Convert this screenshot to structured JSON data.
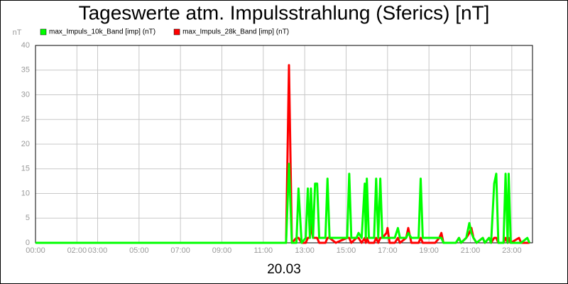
{
  "chart_data": {
    "type": "line",
    "title": "Tageswerte atm. Impulsstrahlung (Sferics) [nT]",
    "y_label": "nT",
    "x_label": "20.03",
    "x": [
      0,
      12.1,
      12.24,
      12.38,
      12.6,
      12.7,
      12.85,
      13.05,
      13.15,
      13.25,
      13.3,
      13.4,
      13.5,
      13.6,
      13.7,
      13.85,
      14.0,
      14.1,
      14.2,
      14.5,
      15.05,
      15.15,
      15.25,
      15.5,
      15.6,
      15.75,
      15.9,
      15.95,
      16.0,
      16.1,
      16.35,
      16.45,
      16.55,
      16.65,
      16.75,
      16.95,
      17.0,
      17.1,
      17.35,
      17.5,
      17.6,
      17.9,
      18.0,
      18.15,
      18.5,
      18.6,
      18.7,
      19.3,
      19.5,
      19.6,
      19.7,
      20.3,
      20.45,
      20.55,
      20.8,
      20.95,
      21.05,
      21.15,
      21.3,
      21.6,
      21.7,
      21.9,
      22.0,
      22.15,
      22.25,
      22.35,
      22.6,
      22.7,
      22.8,
      22.85,
      22.95,
      23.35,
      23.45,
      23.75,
      23.85
    ],
    "series": [
      {
        "name": "max_Impuls_28k_Band [imp] (nT)",
        "color": "#ff0000",
        "values": [
          0,
          0,
          36,
          0,
          1,
          1,
          0,
          0,
          1,
          1,
          4,
          1,
          1,
          1,
          0,
          0,
          0,
          1,
          1,
          0,
          1,
          1,
          0,
          1,
          1,
          0,
          1,
          0,
          1,
          0,
          0,
          1,
          0,
          1,
          1,
          2,
          3,
          0,
          0,
          1,
          0,
          1,
          3,
          0,
          0,
          1,
          0,
          0,
          1,
          2,
          0,
          0,
          1,
          0,
          1,
          2,
          3,
          1,
          0,
          1,
          0,
          1,
          0,
          1,
          1,
          0,
          0,
          1,
          0,
          1,
          0,
          1,
          0,
          0,
          0
        ]
      },
      {
        "name": "max_Impuls_10k_Band [imp] (nT)",
        "color": "#00ff00",
        "values": [
          0,
          0,
          16,
          0,
          0,
          11,
          0,
          1,
          11,
          1,
          11,
          1,
          12,
          12,
          1,
          1,
          1,
          13,
          1,
          1,
          1,
          14,
          1,
          1,
          2,
          1,
          12,
          1,
          13,
          1,
          1,
          13,
          1,
          13,
          1,
          1,
          1,
          1,
          1,
          3,
          1,
          1,
          2,
          1,
          1,
          13,
          1,
          1,
          1,
          1,
          0,
          0,
          1,
          0,
          1,
          4,
          2,
          1,
          0,
          1,
          0,
          1,
          0,
          12,
          14,
          0,
          0,
          14,
          0,
          14,
          0,
          0,
          0,
          1,
          0
        ]
      }
    ],
    "legend_order": [
      1,
      0
    ],
    "xlim": [
      0,
      24
    ],
    "xticks": [
      {
        "value": 0,
        "label": "00:00"
      },
      {
        "value": 2,
        "label": "02:00"
      },
      {
        "value": 3,
        "label": "03:00"
      },
      {
        "value": 5,
        "label": "05:00"
      },
      {
        "value": 7,
        "label": "07:00"
      },
      {
        "value": 9,
        "label": "09:00"
      },
      {
        "value": 11,
        "label": "11:00"
      },
      {
        "value": 13,
        "label": "13:00"
      },
      {
        "value": 15,
        "label": "15:00"
      },
      {
        "value": 17,
        "label": "17:00"
      },
      {
        "value": 19,
        "label": "19:00"
      },
      {
        "value": 21,
        "label": "21:00"
      },
      {
        "value": 23,
        "label": "23:00"
      }
    ],
    "ylim": [
      0,
      40
    ],
    "yticks": [
      0,
      5,
      10,
      15,
      20,
      25,
      30,
      35,
      40
    ],
    "grid": true
  }
}
